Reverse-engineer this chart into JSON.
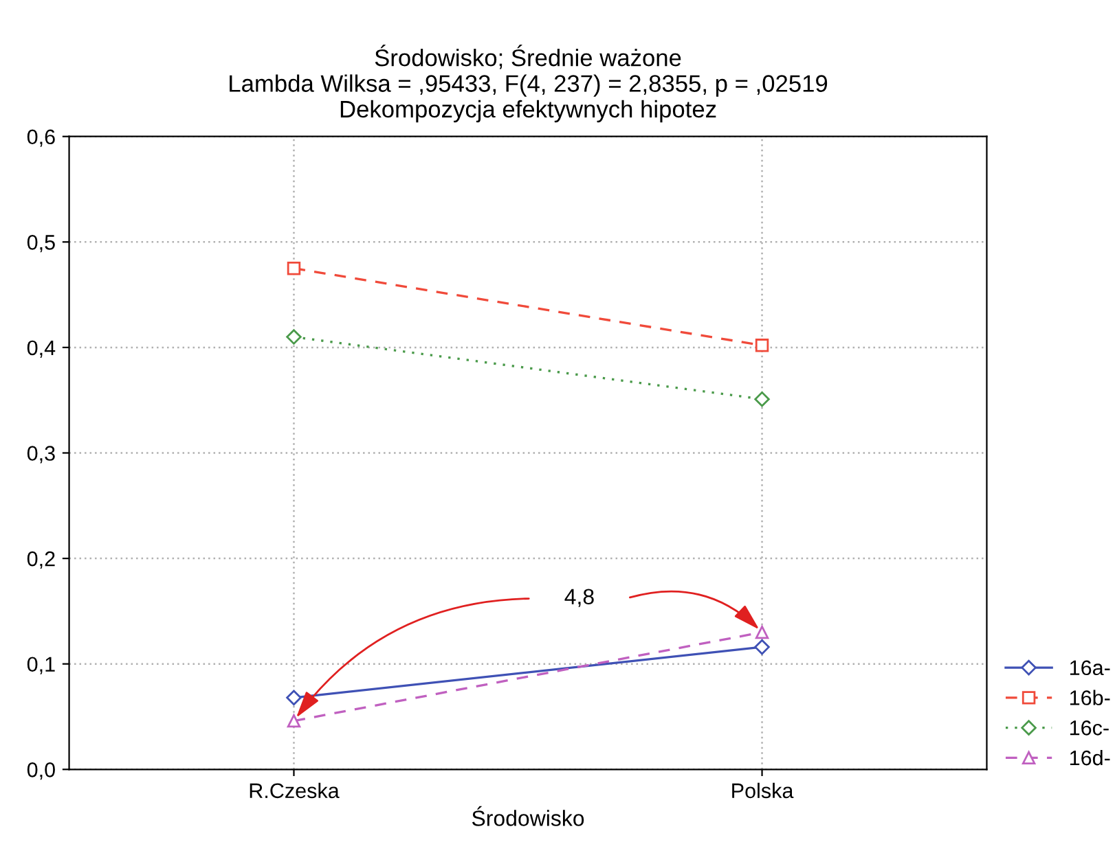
{
  "chart_data": {
    "type": "line",
    "title": "Środowisko; Średnie ważone\nLambda Wilksa = ,95433, F(4, 237) = 2,8355, p = ,02519\nDekompozycja efektywnych hipotez",
    "xlabel": "Środowisko",
    "categories": [
      "R.Czeska",
      "Polska"
    ],
    "series": [
      {
        "name": "16a-",
        "color": "#3f51b5",
        "marker": "diamond",
        "line_style": "solid",
        "values": [
          0.068,
          0.116
        ]
      },
      {
        "name": "16b-",
        "color": "#f04a3a",
        "marker": "square",
        "line_style": "dashed",
        "values": [
          0.475,
          0.402
        ]
      },
      {
        "name": "16c-",
        "color": "#4a9a4a",
        "marker": "diamond",
        "line_style": "dotted",
        "values": [
          0.41,
          0.351
        ]
      },
      {
        "name": "16d-",
        "color": "#c060c0",
        "marker": "triangle",
        "line_style": "dashed",
        "values": [
          0.046,
          0.13
        ]
      }
    ],
    "ylim": [
      0,
      0.6
    ],
    "yticks": [
      {
        "value": 0,
        "label": "0,0"
      },
      {
        "value": 0.1,
        "label": "0,1"
      },
      {
        "value": 0.2,
        "label": "0,2"
      },
      {
        "value": 0.3,
        "label": "0,3"
      },
      {
        "value": 0.4,
        "label": "0,4"
      },
      {
        "value": 0.5,
        "label": "0,5"
      },
      {
        "value": 0.6,
        "label": "0,6"
      }
    ],
    "grid": true,
    "legend": "bottom right",
    "annotations": [
      "4,8"
    ]
  }
}
